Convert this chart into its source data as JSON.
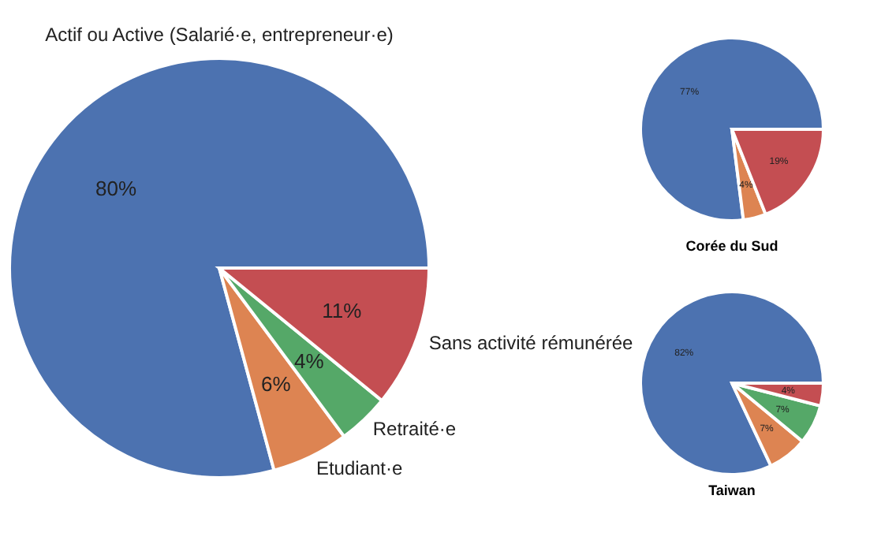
{
  "chart_data": [
    {
      "type": "pie",
      "categories": [
        "Actif ou Active (Salarié·e, entrepreneur·e)",
        "Etudiant·e",
        "Retraité·e",
        "Sans activité rémunérée"
      ],
      "values": [
        80,
        6,
        4,
        11
      ],
      "value_labels": [
        "80%",
        "6%",
        "4%",
        "11%"
      ],
      "colors": [
        "#4c72b0",
        "#dd8452",
        "#55a868",
        "#c44e52"
      ],
      "legend": false
    },
    {
      "type": "pie",
      "title": "Corée du Sud",
      "categories": [
        null,
        null,
        null
      ],
      "values": [
        77,
        4,
        19
      ],
      "value_labels": [
        "77%",
        "4%",
        "19%"
      ],
      "colors": [
        "#4c72b0",
        "#dd8452",
        "#c44e52"
      ],
      "legend": false
    },
    {
      "type": "pie",
      "title": "Taiwan",
      "categories": [
        null,
        null,
        null,
        null
      ],
      "values": [
        82,
        7,
        7,
        4
      ],
      "value_labels": [
        "82%",
        "7%",
        "7%",
        "4%"
      ],
      "colors": [
        "#4c72b0",
        "#dd8452",
        "#55a868",
        "#c44e52"
      ],
      "legend": false
    }
  ]
}
